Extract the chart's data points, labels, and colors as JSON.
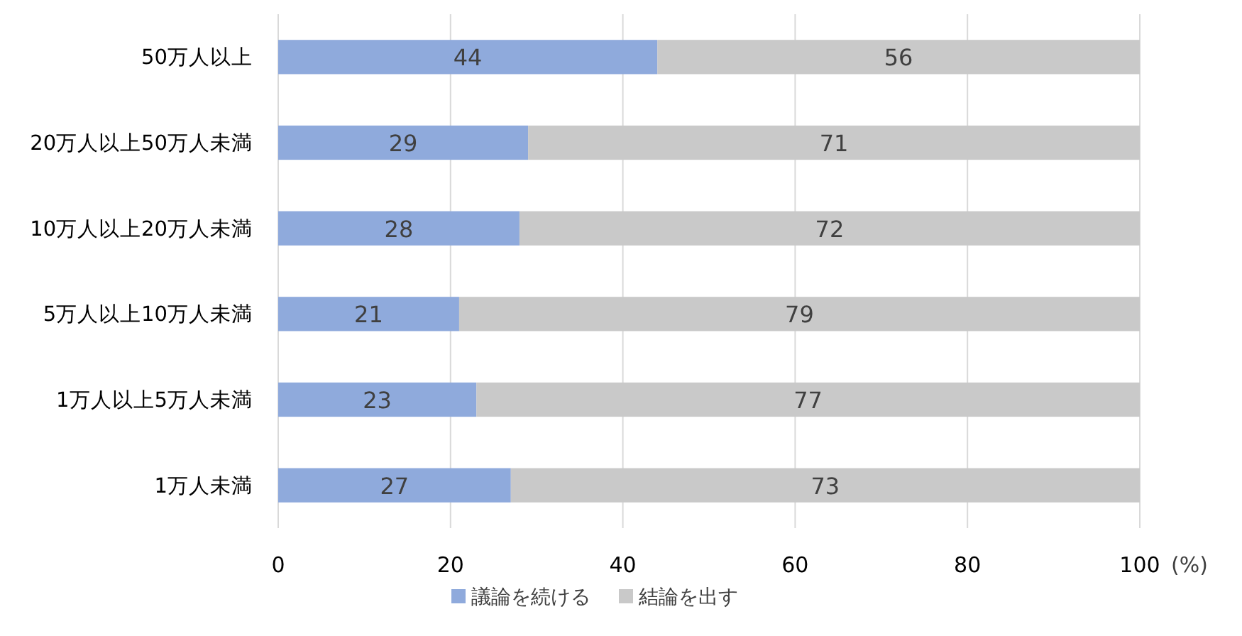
{
  "chart_data": {
    "type": "bar",
    "orientation": "horizontal",
    "stacked": true,
    "categories": [
      "50万人以上",
      "20万人以上50万人未満",
      "10万人以上20万人未満",
      "5万人以上10万人未満",
      "1万人以上5万人未満",
      "1万人未満"
    ],
    "series": [
      {
        "name": "議論を続ける",
        "color": "#8faadc",
        "values": [
          44,
          29,
          28,
          21,
          23,
          27
        ]
      },
      {
        "name": "結論を出す",
        "color": "#c9c9c9",
        "values": [
          56,
          71,
          72,
          79,
          77,
          73
        ]
      }
    ],
    "xlim": [
      0,
      100
    ],
    "xticks": [
      0,
      20,
      40,
      60,
      80,
      100
    ],
    "xlabel": "(%)",
    "grid": "x",
    "legend": "bottom",
    "data_labels": true
  }
}
